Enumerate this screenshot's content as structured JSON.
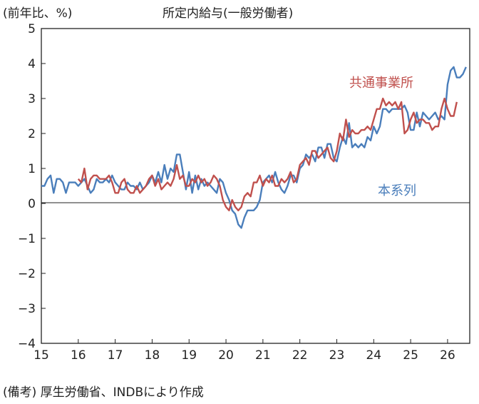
{
  "chart_data": {
    "type": "line",
    "title": "所定内給与(一般労働者)",
    "ylabel": "(前年比、%)",
    "ylim": [
      -4,
      5
    ],
    "yticks": [
      5,
      4,
      3,
      2,
      1,
      0,
      -1,
      -2,
      -3,
      -4
    ],
    "xlim": [
      15,
      26.6
    ],
    "xticks": [
      "15",
      "16",
      "17",
      "18",
      "19",
      "20",
      "21",
      "22",
      "23",
      "24",
      "25",
      "26"
    ],
    "grid": false,
    "zero_line": true,
    "series": [
      {
        "name": "本系列",
        "color": "#4a7ebb",
        "x_start": 15.0,
        "step": 0.08333,
        "values": [
          0.5,
          0.5,
          0.7,
          0.8,
          0.3,
          0.7,
          0.7,
          0.6,
          0.3,
          0.6,
          0.6,
          0.6,
          0.5,
          0.6,
          0.7,
          0.5,
          0.3,
          0.4,
          0.7,
          0.6,
          0.6,
          0.7,
          0.6,
          0.8,
          0.6,
          0.5,
          0.4,
          0.4,
          0.6,
          0.5,
          0.5,
          0.4,
          0.6,
          0.4,
          0.5,
          0.6,
          0.8,
          0.6,
          0.9,
          0.6,
          1.1,
          0.7,
          1.0,
          0.9,
          1.4,
          1.4,
          0.9,
          0.4,
          0.9,
          0.3,
          0.8,
          0.4,
          0.7,
          0.5,
          0.6,
          0.5,
          0.4,
          0.3,
          0.7,
          0.6,
          0.3,
          0.1,
          -0.2,
          -0.3,
          -0.6,
          -0.7,
          -0.4,
          -0.2,
          -0.2,
          -0.2,
          -0.1,
          0.1,
          0.6,
          0.7,
          0.8,
          0.6,
          0.9,
          0.6,
          0.4,
          0.3,
          0.5,
          0.8,
          0.8,
          0.6,
          1.0,
          1.1,
          1.4,
          1.3,
          1.4,
          1.2,
          1.6,
          1.6,
          1.3,
          1.7,
          1.7,
          1.3,
          1.2,
          1.6,
          1.9,
          1.7,
          2.3,
          1.6,
          1.7,
          1.6,
          1.7,
          1.6,
          1.9,
          1.8,
          2.2,
          2.0,
          2.2,
          2.7,
          2.7,
          2.6,
          2.7,
          2.7,
          2.7,
          2.7,
          2.8,
          2.6,
          2.1,
          2.1,
          2.6,
          2.2,
          2.6,
          2.5,
          2.4,
          2.5,
          2.6,
          2.4,
          2.5,
          2.4,
          3.4,
          3.8,
          3.9,
          3.6,
          3.6,
          3.7,
          3.9
        ]
      },
      {
        "name": "共通事業所",
        "color": "#c0504d",
        "x_start": 16.0,
        "step": 0.08333,
        "values": [
          0.7,
          0.6,
          1.0,
          0.4,
          0.7,
          0.8,
          0.8,
          0.7,
          0.7,
          0.7,
          0.8,
          0.6,
          0.3,
          0.3,
          0.6,
          0.7,
          0.4,
          0.3,
          0.3,
          0.5,
          0.3,
          0.4,
          0.5,
          0.7,
          0.8,
          0.5,
          0.7,
          0.4,
          0.5,
          0.6,
          0.5,
          0.7,
          1.1,
          0.7,
          0.8,
          0.5,
          0.5,
          0.7,
          0.6,
          0.8,
          0.6,
          0.7,
          0.5,
          0.6,
          0.8,
          0.7,
          0.5,
          0.1,
          -0.1,
          -0.2,
          0.1,
          -0.1,
          -0.2,
          -0.1,
          0.2,
          0.3,
          0.2,
          0.6,
          0.6,
          0.8,
          0.5,
          0.7,
          0.6,
          0.8,
          0.5,
          0.5,
          0.7,
          0.6,
          0.7,
          0.9,
          0.6,
          0.7,
          1.1,
          1.2,
          1.3,
          1.1,
          1.5,
          1.5,
          1.3,
          1.4,
          1.5,
          1.6,
          1.3,
          1.2,
          1.5,
          2.0,
          1.8,
          2.4,
          1.9,
          2.1,
          2.0,
          2.0,
          2.1,
          2.1,
          2.2,
          2.1,
          2.4,
          2.7,
          2.7,
          3.0,
          2.8,
          2.9,
          2.8,
          2.9,
          2.7,
          2.9,
          2.0,
          2.1,
          2.4,
          2.6,
          2.3,
          2.4,
          2.4,
          2.3,
          2.3,
          2.1,
          2.2,
          2.2,
          2.7,
          3.0,
          2.7,
          2.5,
          2.5,
          2.9
        ]
      }
    ],
    "annotations": [
      "共通事業所",
      "本系列"
    ]
  },
  "footnote": "(備考) 厚生労働省、INDBにより作成"
}
